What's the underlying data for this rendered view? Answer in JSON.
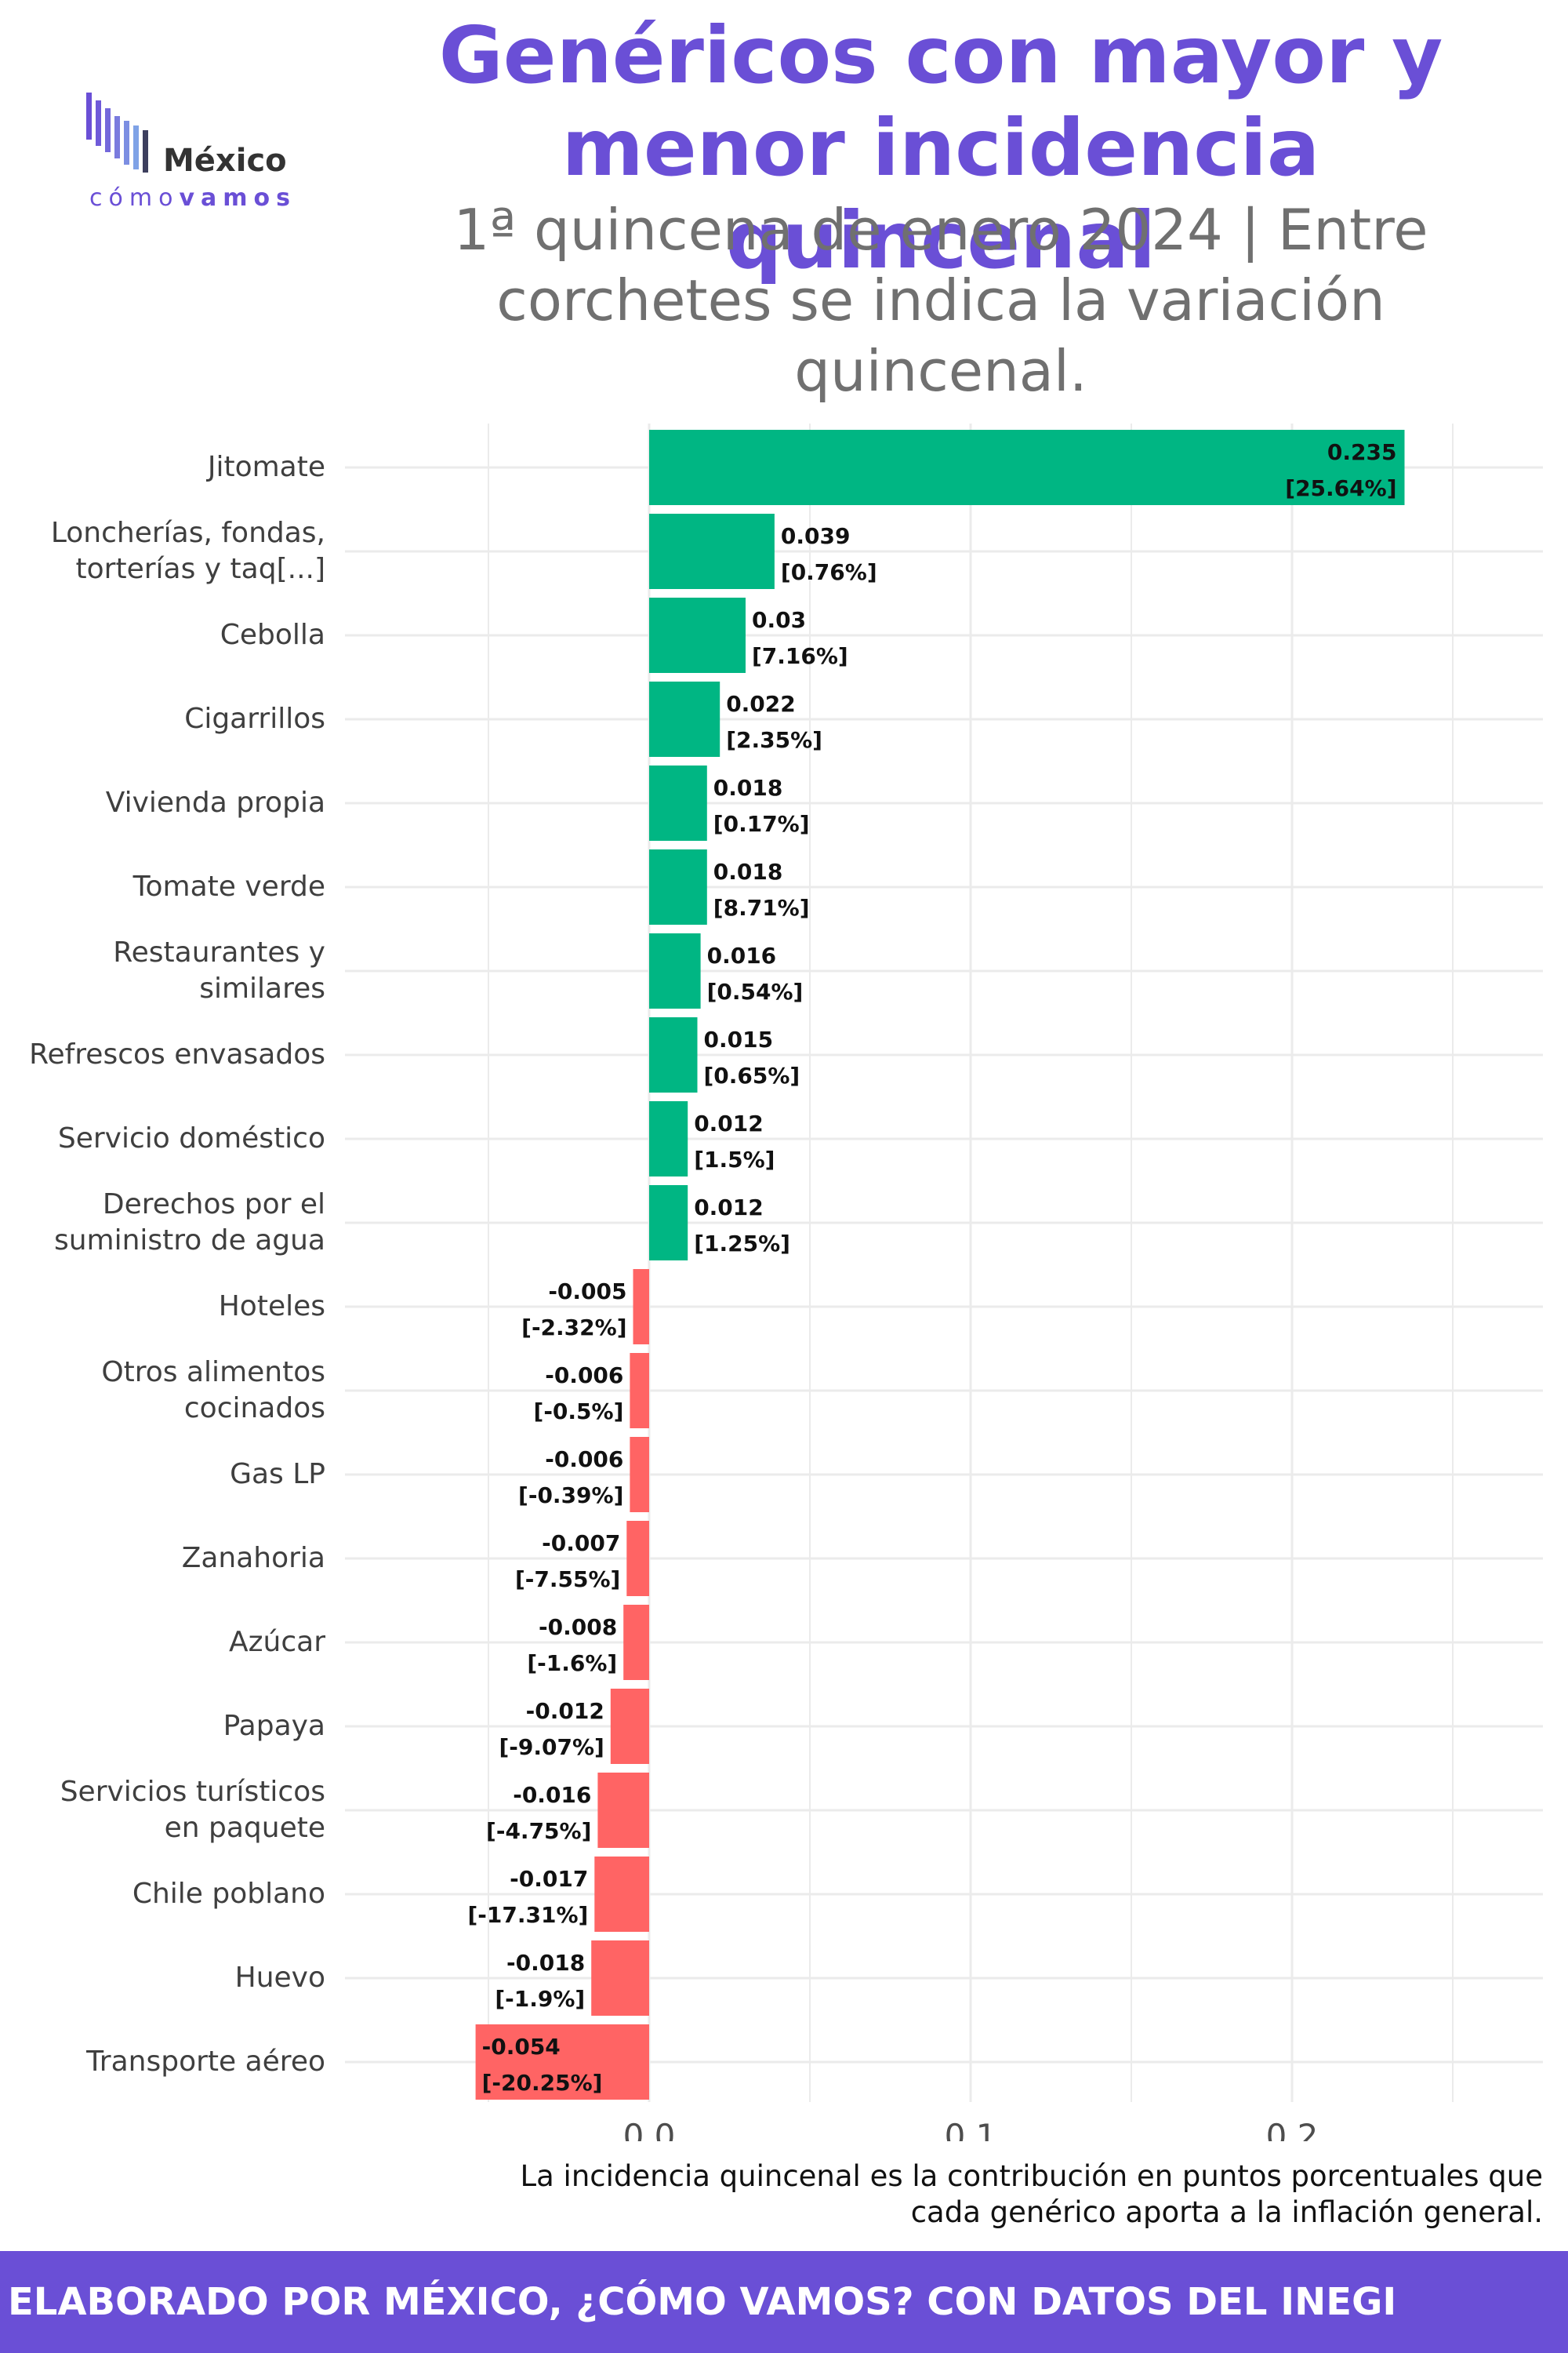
{
  "logo": {
    "word1": "México",
    "word2": "cómo",
    "word3": "vamos"
  },
  "header": {
    "title_lines": [
      "Genéricos con mayor y",
      "menor incidencia quincenal"
    ],
    "subtitle_lines": [
      "1ª quincena de enero 2024 | Entre",
      "corchetes se indica la variación",
      "quincenal."
    ]
  },
  "chart_data": {
    "type": "bar",
    "orientation": "horizontal",
    "categories": [
      [
        "Jitomate"
      ],
      [
        "Loncherías, fondas,",
        "torterías y taq[...]"
      ],
      [
        "Cebolla"
      ],
      [
        "Cigarrillos"
      ],
      [
        "Vivienda propia"
      ],
      [
        "Tomate verde"
      ],
      [
        "Restaurantes y",
        "similares"
      ],
      [
        "Refrescos envasados"
      ],
      [
        "Servicio doméstico"
      ],
      [
        "Derechos por el",
        "suministro de agua"
      ],
      [
        "Hoteles"
      ],
      [
        "Otros alimentos",
        "cocinados"
      ],
      [
        "Gas LP"
      ],
      [
        "Zanahoria"
      ],
      [
        "Azúcar"
      ],
      [
        "Papaya"
      ],
      [
        "Servicios turísticos",
        "en paquete"
      ],
      [
        "Chile poblano"
      ],
      [
        "Huevo"
      ],
      [
        "Transporte aéreo"
      ]
    ],
    "values": [
      0.235,
      0.039,
      0.03,
      0.022,
      0.018,
      0.018,
      0.016,
      0.015,
      0.012,
      0.012,
      -0.005,
      -0.006,
      -0.006,
      -0.007,
      -0.008,
      -0.012,
      -0.016,
      -0.017,
      -0.018,
      -0.054
    ],
    "value_labels": [
      "0.235",
      "0.039",
      "0.03",
      "0.022",
      "0.018",
      "0.018",
      "0.016",
      "0.015",
      "0.012",
      "0.012",
      "-0.005",
      "-0.006",
      "-0.006",
      "-0.007",
      "-0.008",
      "-0.012",
      "-0.016",
      "-0.017",
      "-0.018",
      "-0.054"
    ],
    "variation_labels": [
      "[25.64%]",
      "[0.76%]",
      "[7.16%]",
      "[2.35%]",
      "[0.17%]",
      "[8.71%]",
      "[0.54%]",
      "[0.65%]",
      "[1.5%]",
      "[1.25%]",
      "[-2.32%]",
      "[-0.5%]",
      "[-0.39%]",
      "[-7.55%]",
      "[-1.6%]",
      "[-9.07%]",
      "[-4.75%]",
      "[-17.31%]",
      "[-1.9%]",
      "[-20.25%]"
    ],
    "x_ticks": [
      0.0,
      0.1,
      0.2
    ],
    "x_tick_labels": [
      "0.0",
      "0.1",
      "0.2"
    ],
    "xlim": [
      -0.1,
      0.28
    ],
    "grid": true,
    "colors": {
      "positive": "#00b683",
      "negative": "#ff6464",
      "grid": "#ebebeb"
    }
  },
  "footnote_lines": [
    "La incidencia quincenal es la contribución en puntos porcentuales que",
    "cada genérico aporta a la inflación general."
  ],
  "footer": {
    "text": "ELABORADO POR MÉXICO, ¿CÓMO VAMOS? CON DATOS DEL INEGI"
  }
}
